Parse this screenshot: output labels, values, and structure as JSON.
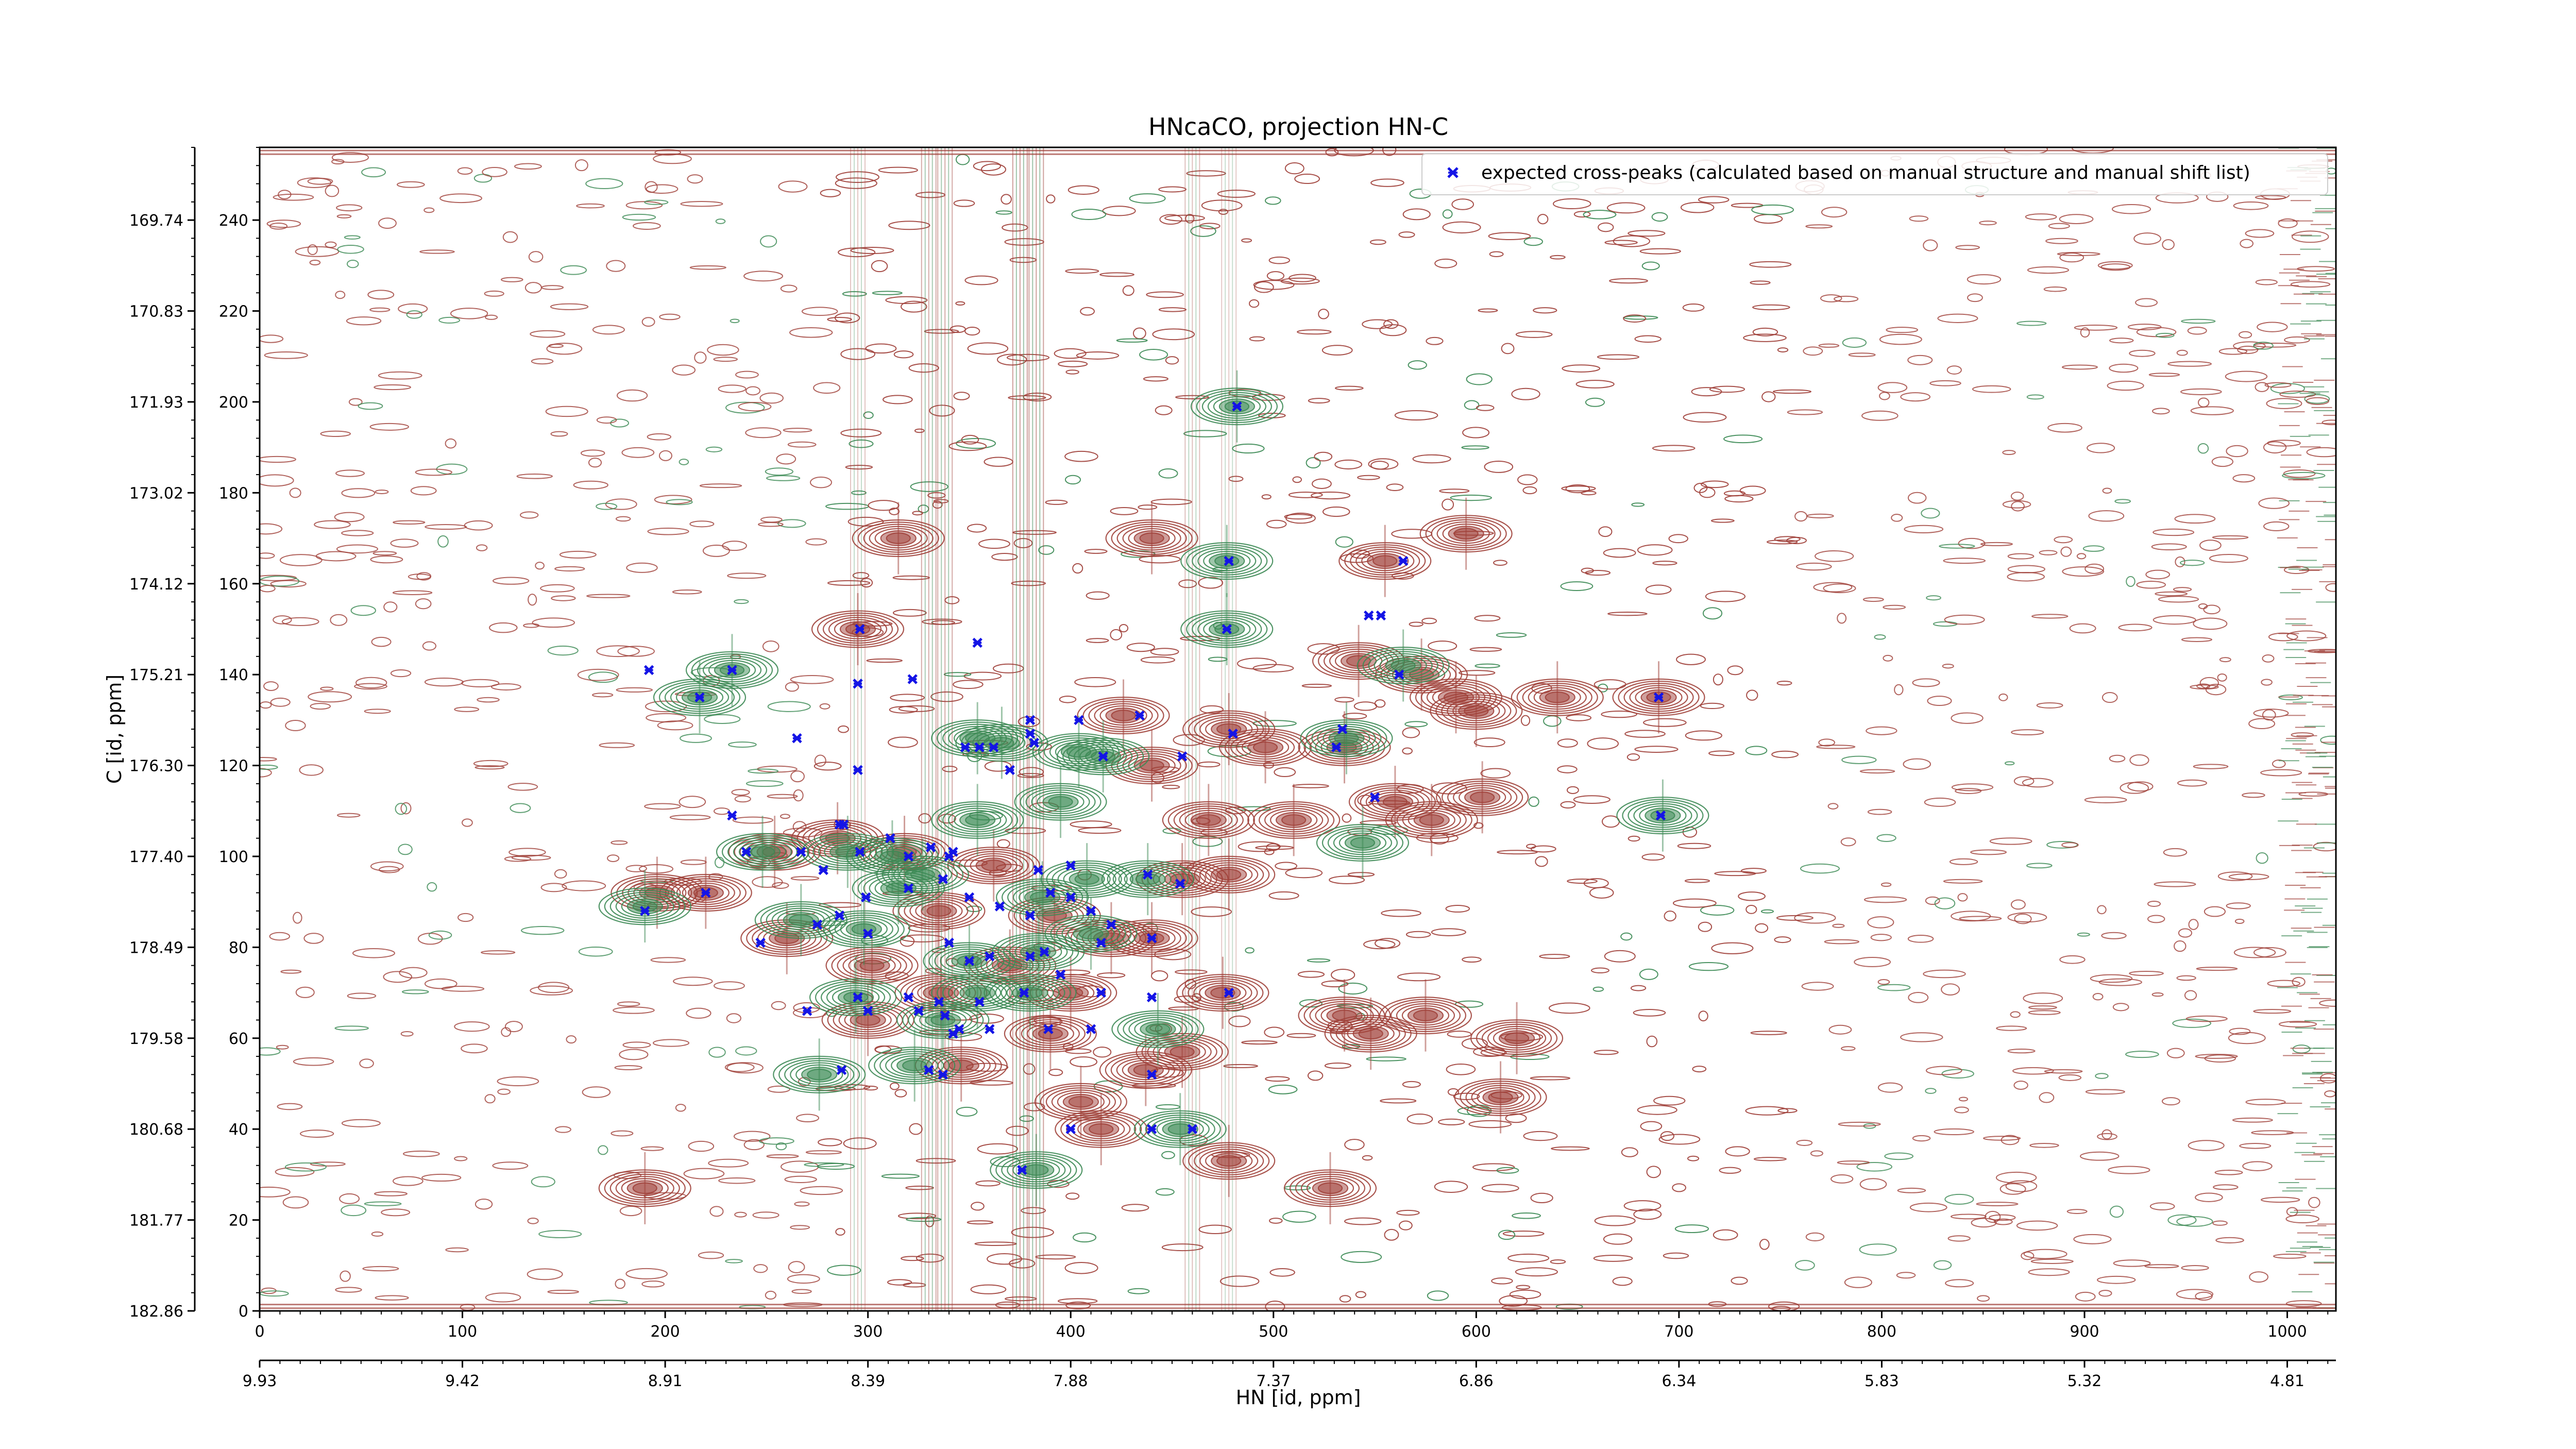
{
  "figure": {
    "colors": {
      "positive_contour": "#a0413a",
      "negative_contour": "#3d8a55",
      "marker": "#1414e6",
      "axis": "#000000",
      "background": "#ffffff"
    }
  },
  "chart_data": {
    "type": "scatter",
    "title": "HNcaCO, projection HN-C",
    "xlabel": "HN [id, ppm]",
    "ylabel": "C [id, ppm]",
    "xlim": [
      0,
      1024
    ],
    "ylim": [
      0,
      256
    ],
    "grid": false,
    "legend_position": "top-right",
    "x_ticks_points": [
      "0",
      "100",
      "200",
      "300",
      "400",
      "500",
      "600",
      "700",
      "800",
      "900",
      "1000"
    ],
    "x_ticks_ppm": [
      "9.93",
      "9.42",
      "8.91",
      "8.39",
      "7.88",
      "7.37",
      "6.86",
      "6.34",
      "5.83",
      "5.32",
      "4.81"
    ],
    "y_ticks_points": [
      "0",
      "20",
      "40",
      "60",
      "80",
      "100",
      "120",
      "140",
      "160",
      "180",
      "200",
      "220",
      "240"
    ],
    "y_ticks_ppm": [
      "182.86",
      "181.77",
      "180.68",
      "179.58",
      "178.49",
      "177.40",
      "176.30",
      "175.21",
      "174.12",
      "173.02",
      "171.93",
      "170.83",
      "169.74"
    ],
    "series": [
      {
        "name": "expected cross-peaks (calculated based on manual structure and manual shift list)",
        "marker": "x",
        "color": "#1414e6",
        "x": [
          482,
          564,
          478,
          477,
          553,
          547,
          562,
          354,
          296,
          192,
          217,
          233,
          265,
          295,
          322,
          690,
          534,
          480,
          531,
          380,
          404,
          434,
          382,
          362,
          370,
          416,
          295,
          355,
          380,
          455,
          550,
          691,
          348,
          286,
          233,
          288,
          240,
          267,
          311,
          296,
          320,
          331,
          342,
          384,
          400,
          438,
          454,
          278,
          190,
          220,
          247,
          275,
          286,
          299,
          320,
          337,
          350,
          365,
          380,
          390,
          400,
          410,
          420,
          440,
          300,
          340,
          360,
          380,
          295,
          320,
          335,
          355,
          377,
          395,
          415,
          440,
          270,
          300,
          325,
          342,
          360,
          389,
          410,
          287,
          337,
          338,
          345,
          387,
          478,
          340,
          440,
          330,
          350,
          400,
          440,
          460,
          415,
          376
        ],
        "y": [
          199,
          165,
          165,
          150,
          153,
          153,
          140,
          147,
          150,
          141,
          135,
          141,
          126,
          138,
          139,
          135,
          128,
          127,
          124,
          127,
          130,
          131,
          125,
          124,
          119,
          122,
          119,
          124,
          130,
          122,
          113,
          109,
          124,
          107,
          109,
          107,
          101,
          101,
          104,
          101,
          100,
          102,
          101,
          97,
          98,
          96,
          94,
          97,
          88,
          92,
          81,
          85,
          87,
          91,
          93,
          95,
          91,
          89,
          87,
          92,
          91,
          88,
          85,
          82,
          83,
          81,
          78,
          78,
          69,
          69,
          68,
          68,
          70,
          74,
          70,
          69,
          66,
          66,
          66,
          61,
          62,
          62,
          62,
          53,
          52,
          65,
          62,
          79,
          70,
          100,
          52,
          53,
          77,
          40,
          40,
          40,
          81,
          31
        ]
      }
    ],
    "contour_peaks": {
      "positive": [
        {
          "x": 440,
          "y": 170
        },
        {
          "x": 595,
          "y": 171
        },
        {
          "x": 315,
          "y": 170
        },
        {
          "x": 555,
          "y": 165
        },
        {
          "x": 295,
          "y": 150
        },
        {
          "x": 542,
          "y": 143
        },
        {
          "x": 573,
          "y": 140
        },
        {
          "x": 590,
          "y": 135
        },
        {
          "x": 640,
          "y": 135
        },
        {
          "x": 600,
          "y": 132
        },
        {
          "x": 690,
          "y": 135
        },
        {
          "x": 426,
          "y": 131
        },
        {
          "x": 478,
          "y": 128
        },
        {
          "x": 496,
          "y": 124
        },
        {
          "x": 535,
          "y": 124
        },
        {
          "x": 440,
          "y": 120
        },
        {
          "x": 468,
          "y": 108
        },
        {
          "x": 510,
          "y": 108
        },
        {
          "x": 578,
          "y": 108
        },
        {
          "x": 560,
          "y": 112
        },
        {
          "x": 603,
          "y": 113
        },
        {
          "x": 285,
          "y": 104
        },
        {
          "x": 318,
          "y": 101
        },
        {
          "x": 362,
          "y": 98
        },
        {
          "x": 254,
          "y": 101
        },
        {
          "x": 196,
          "y": 92
        },
        {
          "x": 220,
          "y": 92
        },
        {
          "x": 260,
          "y": 82
        },
        {
          "x": 335,
          "y": 88
        },
        {
          "x": 392,
          "y": 87
        },
        {
          "x": 420,
          "y": 82
        },
        {
          "x": 440,
          "y": 82
        },
        {
          "x": 370,
          "y": 76
        },
        {
          "x": 302,
          "y": 76
        },
        {
          "x": 336,
          "y": 70
        },
        {
          "x": 400,
          "y": 70
        },
        {
          "x": 475,
          "y": 70
        },
        {
          "x": 300,
          "y": 64
        },
        {
          "x": 535,
          "y": 65
        },
        {
          "x": 575,
          "y": 65
        },
        {
          "x": 548,
          "y": 61
        },
        {
          "x": 620,
          "y": 60
        },
        {
          "x": 390,
          "y": 61
        },
        {
          "x": 455,
          "y": 57
        },
        {
          "x": 346,
          "y": 54
        },
        {
          "x": 437,
          "y": 53
        },
        {
          "x": 405,
          "y": 46
        },
        {
          "x": 612,
          "y": 47
        },
        {
          "x": 415,
          "y": 40
        },
        {
          "x": 478,
          "y": 33
        },
        {
          "x": 190,
          "y": 27
        },
        {
          "x": 528,
          "y": 27
        },
        {
          "x": 455,
          "y": 95
        },
        {
          "x": 478,
          "y": 96
        }
      ],
      "negative": [
        {
          "x": 482,
          "y": 199
        },
        {
          "x": 477,
          "y": 165
        },
        {
          "x": 477,
          "y": 150
        },
        {
          "x": 564,
          "y": 142
        },
        {
          "x": 536,
          "y": 126
        },
        {
          "x": 217,
          "y": 135
        },
        {
          "x": 233,
          "y": 141
        },
        {
          "x": 354,
          "y": 126
        },
        {
          "x": 366,
          "y": 125
        },
        {
          "x": 404,
          "y": 123
        },
        {
          "x": 416,
          "y": 122
        },
        {
          "x": 354,
          "y": 108
        },
        {
          "x": 395,
          "y": 112
        },
        {
          "x": 544,
          "y": 103
        },
        {
          "x": 692,
          "y": 109
        },
        {
          "x": 248,
          "y": 101
        },
        {
          "x": 290,
          "y": 101
        },
        {
          "x": 312,
          "y": 100
        },
        {
          "x": 190,
          "y": 89
        },
        {
          "x": 267,
          "y": 86
        },
        {
          "x": 298,
          "y": 84
        },
        {
          "x": 315,
          "y": 93
        },
        {
          "x": 350,
          "y": 77
        },
        {
          "x": 386,
          "y": 91
        },
        {
          "x": 410,
          "y": 83
        },
        {
          "x": 438,
          "y": 95
        },
        {
          "x": 384,
          "y": 79
        },
        {
          "x": 294,
          "y": 69
        },
        {
          "x": 354,
          "y": 70
        },
        {
          "x": 380,
          "y": 70
        },
        {
          "x": 443,
          "y": 62
        },
        {
          "x": 337,
          "y": 64
        },
        {
          "x": 276,
          "y": 52
        },
        {
          "x": 323,
          "y": 54
        },
        {
          "x": 454,
          "y": 40
        },
        {
          "x": 383,
          "y": 31
        },
        {
          "x": 408,
          "y": 95
        },
        {
          "x": 327,
          "y": 96
        }
      ]
    }
  }
}
